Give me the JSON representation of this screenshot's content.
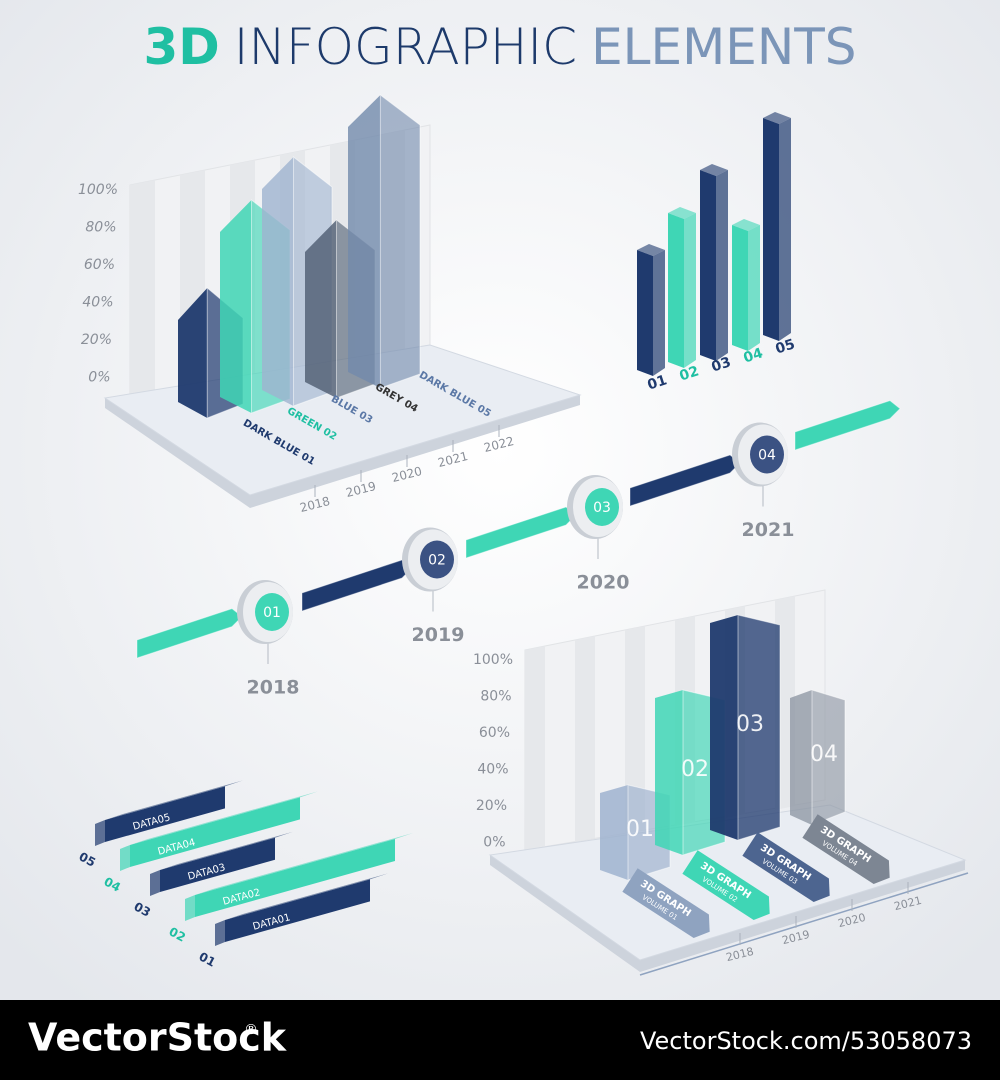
{
  "title": {
    "accent": "3D",
    "main": "INFOGRAPHIC",
    "light": "ELEMENTS"
  },
  "chart1": {
    "yticks": [
      "100%",
      "80%",
      "60%",
      "40%",
      "20%",
      "0%"
    ],
    "labels": [
      "DARK BLUE 01",
      "GREEN 02",
      "BLUE 03",
      "GREY 04",
      "DARK BLUE 05"
    ],
    "years": [
      "2018",
      "2019",
      "2020",
      "2021",
      "2022"
    ]
  },
  "chart2": {
    "labels": [
      "01",
      "02",
      "03",
      "04",
      "05"
    ]
  },
  "timeline": {
    "steps": [
      {
        "num": "01",
        "year": "2018"
      },
      {
        "num": "02",
        "year": "2019"
      },
      {
        "num": "03",
        "year": "2020"
      },
      {
        "num": "04",
        "year": "2021"
      }
    ]
  },
  "chart3": {
    "yticks": [
      "100%",
      "80%",
      "60%",
      "40%",
      "20%",
      "0%"
    ],
    "bars": [
      "01",
      "02",
      "03",
      "04"
    ],
    "ribbons": [
      {
        "title": "3D GRAPH",
        "sub": "VOLUME 01"
      },
      {
        "title": "3D GRAPH",
        "sub": "VOLUME 02"
      },
      {
        "title": "3D GRAPH",
        "sub": "VOLUME 03"
      },
      {
        "title": "3D GRAPH",
        "sub": "VOLUME 04"
      }
    ],
    "years": [
      "2018",
      "2019",
      "2020",
      "2021"
    ]
  },
  "hbars": {
    "items": [
      {
        "num": "05",
        "label": "DATA05"
      },
      {
        "num": "04",
        "label": "DATA04"
      },
      {
        "num": "03",
        "label": "DATA03"
      },
      {
        "num": "02",
        "label": "DATA02"
      },
      {
        "num": "01",
        "label": "DATA01"
      }
    ]
  },
  "footer": {
    "brand": "VectorStock",
    "reg": "®",
    "url": "VectorStock.com/53058073"
  }
}
